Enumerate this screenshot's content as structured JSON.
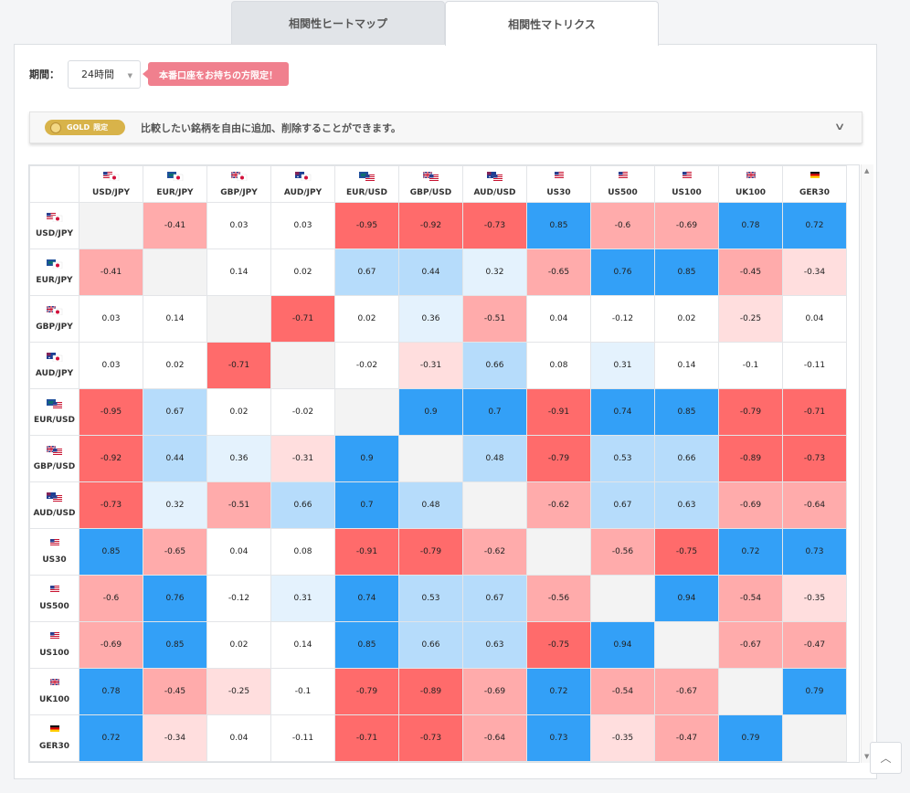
{
  "tabs": [
    {
      "label": "相関性ヒートマップ",
      "active": false
    },
    {
      "label": "相関性マトリクス",
      "active": true
    }
  ],
  "period": {
    "label": "期間：",
    "value": "24時間",
    "notice": "本番口座をお持ちの方限定！"
  },
  "gold": {
    "badge": "GOLD",
    "badge_suffix": "限定",
    "text": "比較したい銘柄を自由に追加、削除することができます。"
  },
  "colors": {
    "strong_neg": "#ff6b6b",
    "mid_neg": "#ffabab",
    "weak_neg": "#ffdede",
    "strong_pos": "#33a0f7",
    "mid_pos": "#b6dcfb",
    "weak_pos": "#e4f2fd",
    "neutral": "#ffffff",
    "diag": "#f3f3f3"
  },
  "symbols": [
    {
      "label": "USD/JPY",
      "flag": "usd-jpy"
    },
    {
      "label": "EUR/JPY",
      "flag": "eur-jpy"
    },
    {
      "label": "GBP/JPY",
      "flag": "gbp-jpy"
    },
    {
      "label": "AUD/JPY",
      "flag": "aud-jpy"
    },
    {
      "label": "EUR/USD",
      "flag": "eur-usd"
    },
    {
      "label": "GBP/USD",
      "flag": "gbp-usd"
    },
    {
      "label": "AUD/USD",
      "flag": "aud-usd"
    },
    {
      "label": "US30",
      "flag": "us"
    },
    {
      "label": "US500",
      "flag": "us"
    },
    {
      "label": "US100",
      "flag": "us"
    },
    {
      "label": "UK100",
      "flag": "uk"
    },
    {
      "label": "GER30",
      "flag": "de"
    }
  ],
  "matrix": [
    [
      "",
      "-0.41",
      "0.03",
      "0.03",
      "-0.95",
      "-0.92",
      "-0.73",
      "0.85",
      "-0.6",
      "-0.69",
      "0.78",
      "0.72"
    ],
    [
      "-0.41",
      "",
      "0.14",
      "0.02",
      "0.67",
      "0.44",
      "0.32",
      "-0.65",
      "0.76",
      "0.85",
      "-0.45",
      "-0.34"
    ],
    [
      "0.03",
      "0.14",
      "",
      "-0.71",
      "0.02",
      "0.36",
      "-0.51",
      "0.04",
      "-0.12",
      "0.02",
      "-0.25",
      "0.04"
    ],
    [
      "0.03",
      "0.02",
      "-0.71",
      "",
      "-0.02",
      "-0.31",
      "0.66",
      "0.08",
      "0.31",
      "0.14",
      "-0.1",
      "-0.11"
    ],
    [
      "-0.95",
      "0.67",
      "0.02",
      "-0.02",
      "",
      "0.9",
      "0.7",
      "-0.91",
      "0.74",
      "0.85",
      "-0.79",
      "-0.71"
    ],
    [
      "-0.92",
      "0.44",
      "0.36",
      "-0.31",
      "0.9",
      "",
      "0.48",
      "-0.79",
      "0.53",
      "0.66",
      "-0.89",
      "-0.73"
    ],
    [
      "-0.73",
      "0.32",
      "-0.51",
      "0.66",
      "0.7",
      "0.48",
      "",
      "-0.62",
      "0.67",
      "0.63",
      "-0.69",
      "-0.64"
    ],
    [
      "0.85",
      "-0.65",
      "0.04",
      "0.08",
      "-0.91",
      "-0.79",
      "-0.62",
      "",
      "-0.56",
      "-0.75",
      "0.72",
      "0.73"
    ],
    [
      "-0.6",
      "0.76",
      "-0.12",
      "0.31",
      "0.74",
      "0.53",
      "0.67",
      "-0.56",
      "",
      "0.94",
      "-0.54",
      "-0.35"
    ],
    [
      "-0.69",
      "0.85",
      "0.02",
      "0.14",
      "0.85",
      "0.66",
      "0.63",
      "-0.75",
      "0.94",
      "",
      "-0.67",
      "-0.47"
    ],
    [
      "0.78",
      "-0.45",
      "-0.25",
      "-0.1",
      "-0.79",
      "-0.89",
      "-0.69",
      "0.72",
      "-0.54",
      "-0.67",
      "",
      "0.79"
    ],
    [
      "0.72",
      "-0.34",
      "0.04",
      "-0.11",
      "-0.71",
      "-0.73",
      "-0.64",
      "0.73",
      "-0.35",
      "-0.47",
      "0.79",
      ""
    ]
  ]
}
